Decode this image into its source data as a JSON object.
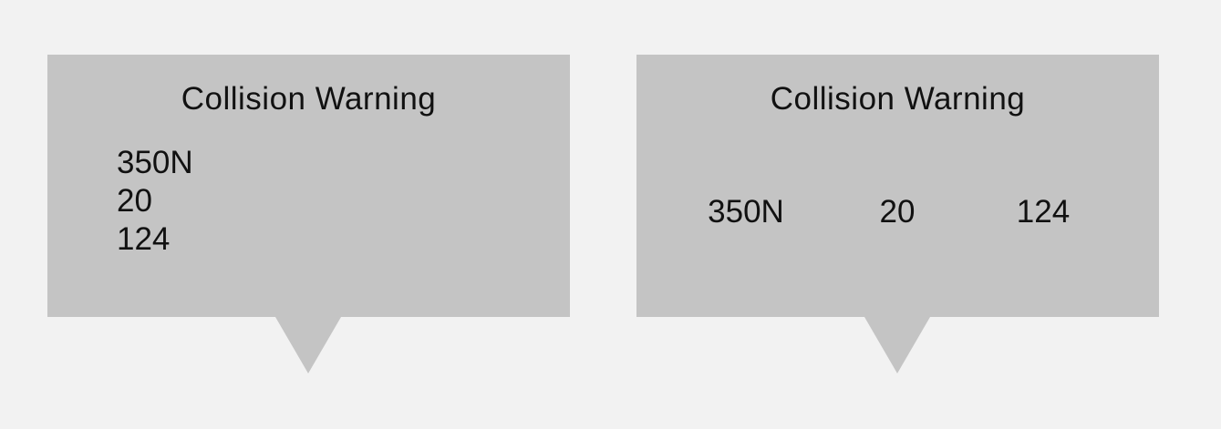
{
  "callouts": [
    {
      "title": "Collision Warning",
      "values": [
        "350N",
        "20",
        "124"
      ]
    },
    {
      "title": "Collision Warning",
      "values": [
        "350N",
        "20",
        "124"
      ]
    }
  ],
  "colors": {
    "background": "#f2f2f2",
    "callout_fill": "#c4c4c4",
    "text": "#111111"
  }
}
